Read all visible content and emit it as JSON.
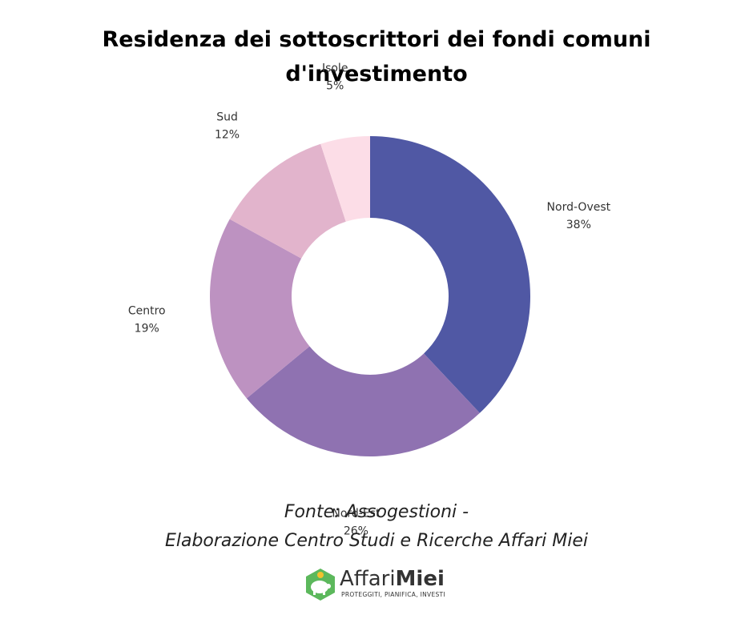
{
  "chart_data": {
    "type": "donut",
    "title": "Residenza dei sottoscrittori dei fondi comuni d'investimento",
    "categories": [
      "Nord-Ovest",
      "Nord-Est",
      "Centro",
      "Sud",
      "Isole"
    ],
    "values": [
      38,
      26,
      19,
      12,
      5
    ],
    "value_labels": [
      "38%",
      "26%",
      "19%",
      "12%",
      "5%"
    ],
    "colors": [
      "#5058a4",
      "#8f72b1",
      "#bd92c1",
      "#e2b4cc",
      "#fcdde7"
    ],
    "start": "top",
    "direction": "clockwise",
    "legend": "none"
  },
  "source": {
    "line1": "Fonte: Assogestioni -",
    "line2": "Elaborazione Centro Studi e Ricerche Affari Miei"
  },
  "logo": {
    "word_light": "Affari",
    "word_bold": "Miei",
    "tagline": "PROTEGGITI, PIANIFICA, INVESTI",
    "colors": {
      "hexagon": "#5cb85c",
      "piggy": "#ffffff",
      "coin": "#f2c12e",
      "text": "#333333"
    }
  }
}
